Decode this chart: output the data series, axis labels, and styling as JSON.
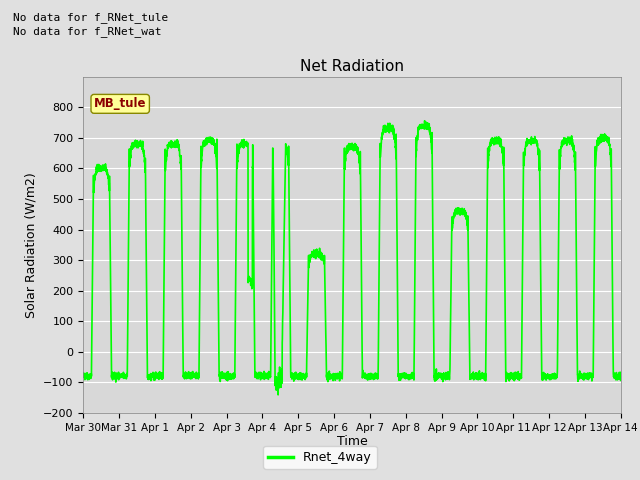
{
  "title": "Net Radiation",
  "xlabel": "Time",
  "ylabel": "Solar Radiation (W/m2)",
  "ylim": [
    -200,
    900
  ],
  "yticks": [
    -200,
    -100,
    0,
    100,
    200,
    300,
    400,
    500,
    600,
    700,
    800
  ],
  "line_color": "#00FF00",
  "line_width": 1.2,
  "fig_bg_color": "#E0E0E0",
  "plot_bg_color": "#DCDCDC",
  "legend_label": "Rnet_4way",
  "text_lines": [
    "No data for f_RNet_tule",
    "No data for f_RNet_wat"
  ],
  "legend_box_color": "#FFFF99",
  "legend_box_text": "MB_tule",
  "x_tick_labels": [
    "Mar 30",
    "Mar 31",
    "Apr 1",
    "Apr 2",
    "Apr 3",
    "Apr 4",
    "Apr 5",
    "Apr 6",
    "Apr 7",
    "Apr 8",
    "Apr 9",
    "Apr 10",
    "Apr 11",
    "Apr 12",
    "Apr 13",
    "Apr 14"
  ],
  "num_days": 15,
  "seed": 42,
  "peaks": [
    600,
    680,
    680,
    690,
    680,
    680,
    320,
    670,
    730,
    740,
    460,
    690,
    690,
    690,
    700
  ],
  "night_val": -80
}
